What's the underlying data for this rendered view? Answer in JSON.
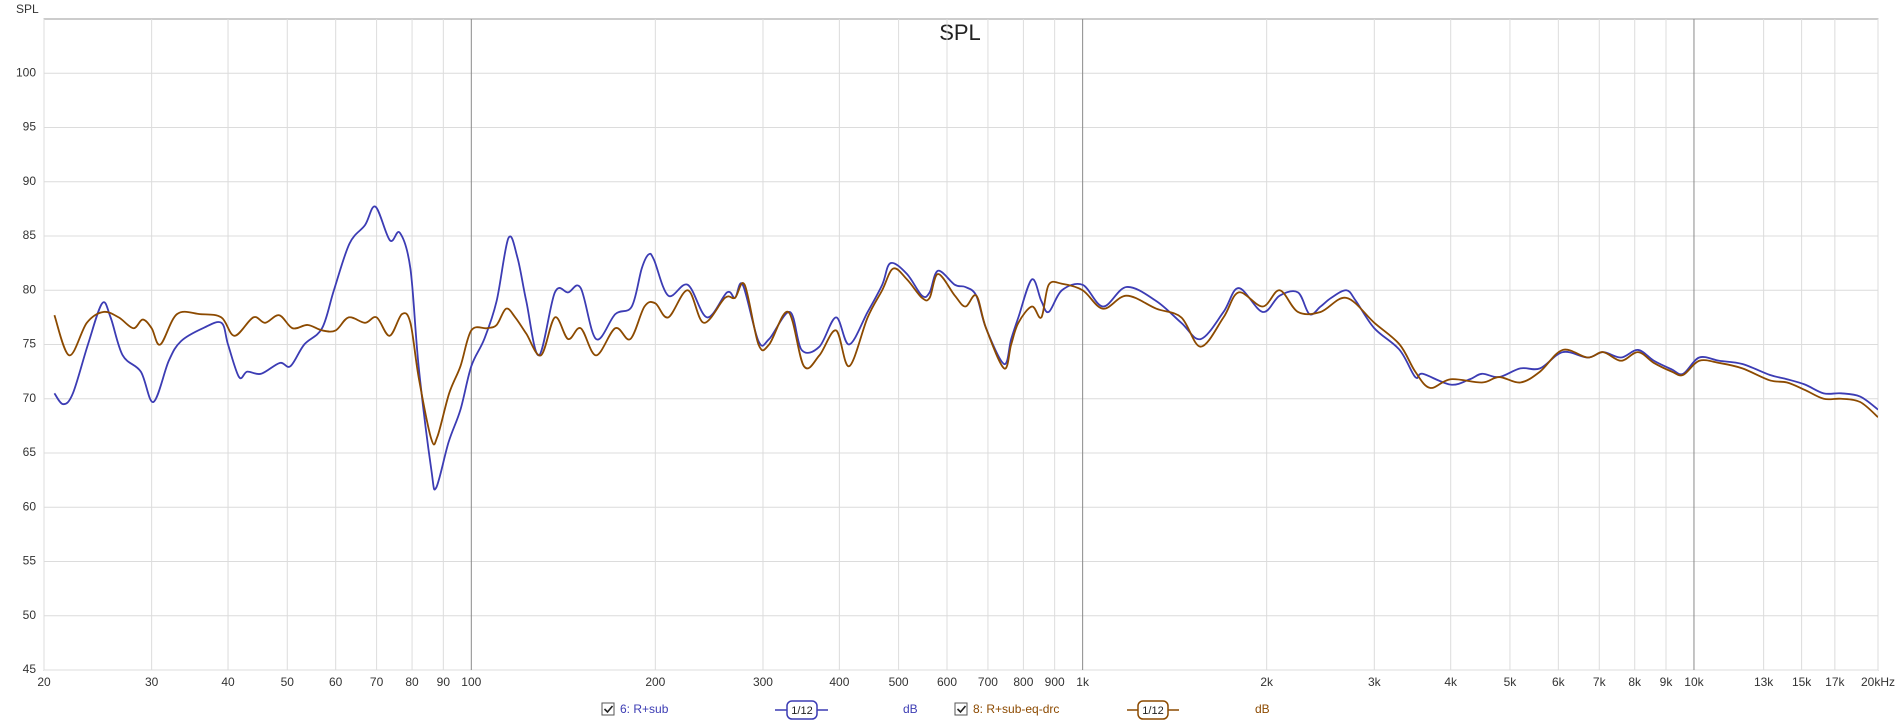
{
  "chart_data": {
    "type": "line",
    "title": "SPL",
    "y_label": "SPL",
    "xscale": "log",
    "xlim": [
      20,
      20000
    ],
    "ylim": [
      45,
      105
    ],
    "grid": true,
    "yticks": [
      45,
      50,
      55,
      60,
      65,
      70,
      75,
      80,
      85,
      90,
      95,
      100
    ],
    "xticks": [
      20,
      30,
      40,
      50,
      60,
      70,
      80,
      90,
      100,
      200,
      300,
      400,
      500,
      600,
      700,
      800,
      900,
      {
        "value": 1000,
        "label": "1k"
      },
      {
        "value": 2000,
        "label": "2k"
      },
      {
        "value": 3000,
        "label": "3k"
      },
      {
        "value": 4000,
        "label": "4k"
      },
      {
        "value": 5000,
        "label": "5k"
      },
      {
        "value": 6000,
        "label": "6k"
      },
      {
        "value": 7000,
        "label": "7k"
      },
      {
        "value": 8000,
        "label": "8k"
      },
      {
        "value": 9000,
        "label": "9k"
      },
      {
        "value": 10000,
        "label": "10k"
      },
      {
        "value": 13000,
        "label": "13k"
      },
      {
        "value": 15000,
        "label": "15k"
      },
      {
        "value": 17000,
        "label": "17k"
      },
      {
        "value": 20000,
        "label": "20kHz"
      }
    ],
    "series": [
      {
        "name": "6: R+sub",
        "color": "#3c3cb4",
        "smoothing": "1/12",
        "unit": "dB",
        "x": [
          20.8,
          21.5,
          22.3,
          23.6,
          24.9,
          25.7,
          26.9,
          28.8,
          30.2,
          32,
          33.5,
          36.4,
          39,
          40,
          41.7,
          43,
          45.3,
          48.6,
          50.6,
          53.3,
          57,
          59.6,
          63.2,
          67,
          69.7,
          73.6,
          76.4,
          79.5,
          82,
          86,
          87.6,
          91.8,
          96,
          100,
          105,
          110,
          115,
          119,
          123,
          129,
          137,
          144,
          151,
          160,
          172,
          183,
          190,
          195,
          199,
          210,
          226,
          243,
          262,
          270,
          278,
          295,
          307,
          332,
          347,
          371,
          395,
          415,
          445,
          470,
          485,
          516,
          546,
          562,
          580,
          618,
          643,
          670,
          695,
          744,
          764,
          785,
          826,
          856,
          880,
          925,
          1000,
          1080,
          1180,
          1320,
          1450,
          1560,
          1700,
          1800,
          1970,
          2100,
          2250,
          2350,
          2450,
          2550,
          2700,
          2800,
          3000,
          3300,
          3500,
          3600,
          4000,
          4300,
          4500,
          4800,
          5200,
          5600,
          6100,
          6700,
          7100,
          7600,
          8100,
          8600,
          9200,
          9600,
          10200,
          11000,
          12000,
          13300,
          14200,
          15200,
          16300,
          17400,
          18700,
          20000
        ],
        "values": [
          70.5,
          69.5,
          70.5,
          75,
          78.8,
          77.5,
          74,
          72.5,
          69.7,
          73.5,
          75.3,
          76.5,
          77,
          75,
          72,
          72.5,
          72.3,
          73.3,
          73,
          75,
          76.5,
          80,
          84.3,
          86,
          87.7,
          84.6,
          85.3,
          82,
          73,
          63.5,
          61.8,
          66,
          69,
          73,
          75.5,
          79,
          84.8,
          83,
          79,
          74,
          79.8,
          79.8,
          80.2,
          75.5,
          77.8,
          78.5,
          82,
          83.3,
          82.8,
          79.5,
          80.5,
          77.5,
          79.8,
          79.3,
          80.5,
          75.3,
          75.5,
          78,
          74.5,
          74.8,
          77.5,
          75,
          78,
          80.5,
          82.5,
          81.5,
          79.5,
          79.8,
          81.8,
          80.5,
          80.3,
          79.5,
          76.5,
          73.2,
          75.5,
          77.5,
          81,
          79,
          78,
          80,
          80.5,
          78.5,
          80.3,
          79,
          77,
          75.5,
          78,
          80.2,
          78,
          79.5,
          79.8,
          77.8,
          78.5,
          79.3,
          80,
          79,
          76.5,
          74.5,
          72,
          72.3,
          71.3,
          71.8,
          72.3,
          72,
          72.8,
          72.8,
          74.3,
          73.8,
          74.3,
          73.8,
          74.5,
          73.5,
          72.7,
          72.3,
          73.8,
          73.5,
          73.2,
          72.2,
          71.8,
          71.3,
          70.5,
          70.5,
          70.2,
          69
        ]
      },
      {
        "name": "8: R+sub-eq-drc",
        "color": "#8c4a00",
        "smoothing": "1/12",
        "unit": "dB",
        "x": [
          20.8,
          22,
          23.5,
          25,
          26.5,
          28,
          29,
          30,
          31,
          33,
          36,
          39,
          41,
          44,
          46,
          48.5,
          51,
          54,
          57,
          60,
          63,
          67,
          70,
          73.5,
          77,
          79.5,
          82,
          86,
          88,
          92,
          96,
          100,
          106,
          110,
          114,
          118,
          123,
          130,
          137,
          144,
          151,
          160,
          172,
          182,
          192,
          200,
          210,
          226,
          240,
          260,
          270,
          280,
          295,
          307,
          330,
          350,
          371,
          395,
          415,
          445,
          470,
          490,
          516,
          546,
          562,
          580,
          618,
          643,
          670,
          695,
          744,
          764,
          785,
          826,
          856,
          880,
          925,
          1000,
          1080,
          1180,
          1320,
          1450,
          1560,
          1700,
          1800,
          1970,
          2100,
          2250,
          2450,
          2700,
          3000,
          3300,
          3500,
          3700,
          4000,
          4500,
          4800,
          5200,
          5600,
          6100,
          6700,
          7100,
          7600,
          8100,
          8600,
          9200,
          9600,
          10200,
          11000,
          12000,
          13300,
          14200,
          15200,
          16300,
          17400,
          18700,
          20000
        ],
        "values": [
          77.7,
          74,
          77,
          78,
          77.5,
          76.5,
          77.3,
          76.5,
          75,
          77.8,
          77.8,
          77.5,
          75.8,
          77.5,
          77,
          77.7,
          76.5,
          76.8,
          76.3,
          76.3,
          77.5,
          77,
          77.5,
          75.8,
          77.8,
          77,
          72,
          66.3,
          66.5,
          70.5,
          73,
          76.3,
          76.5,
          76.8,
          78.3,
          77.5,
          76,
          74,
          77.5,
          75.5,
          76.5,
          74,
          76.5,
          75.5,
          78.5,
          78.8,
          77.5,
          80,
          77,
          79.3,
          79.3,
          80.5,
          75,
          75,
          78,
          73,
          74,
          76.3,
          73,
          77.5,
          80,
          82,
          81,
          79.3,
          79.3,
          81.5,
          79.5,
          78.5,
          79.5,
          76.5,
          72.8,
          75,
          77,
          78.5,
          77.5,
          80.5,
          80.6,
          80,
          78.3,
          79.5,
          78.3,
          77.5,
          74.8,
          77.5,
          79.8,
          78.5,
          80,
          78,
          78,
          79.3,
          77,
          75,
          72.5,
          71,
          71.8,
          71.5,
          72,
          71.5,
          72.5,
          74.5,
          73.8,
          74.3,
          73.5,
          74.3,
          73.3,
          72.5,
          72.2,
          73.5,
          73.3,
          72.8,
          71.7,
          71.5,
          70.8,
          70,
          70,
          69.7,
          68.3
        ]
      }
    ]
  }
}
